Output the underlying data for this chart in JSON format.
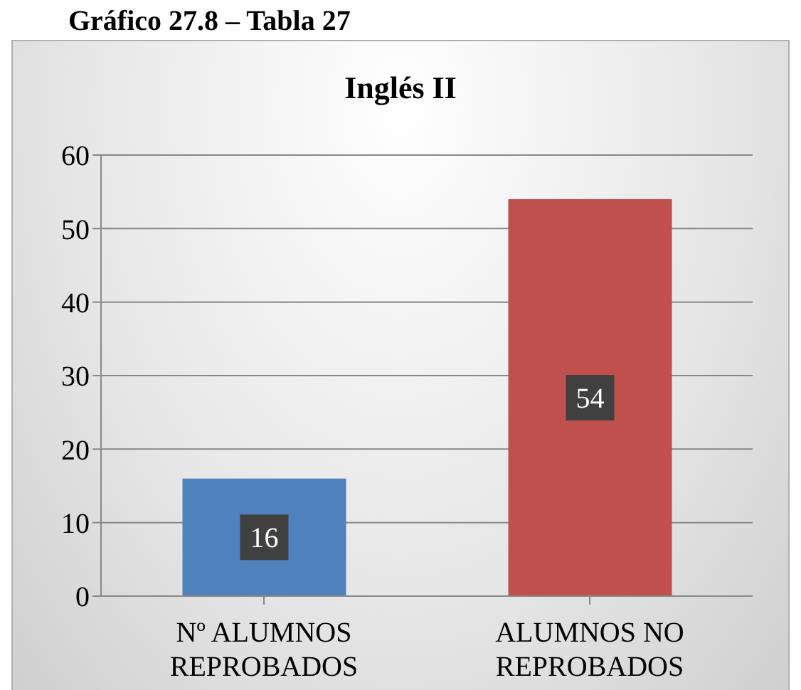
{
  "chart_data": {
    "type": "bar",
    "title": "Inglés II",
    "annotations": [
      "Gráfico 27.8 – Tabla 27"
    ],
    "categories": [
      "Nº ALUMNOS REPROBADOS",
      "ALUMNOS NO REPROBADOS"
    ],
    "values": [
      16,
      54
    ],
    "colors": [
      "#4f81bd",
      "#c0504d"
    ],
    "ylim": [
      0,
      60
    ],
    "yticks": [
      0,
      10,
      20,
      30,
      40,
      50,
      60
    ],
    "grid": "y",
    "data_labels": true,
    "legend": false
  }
}
